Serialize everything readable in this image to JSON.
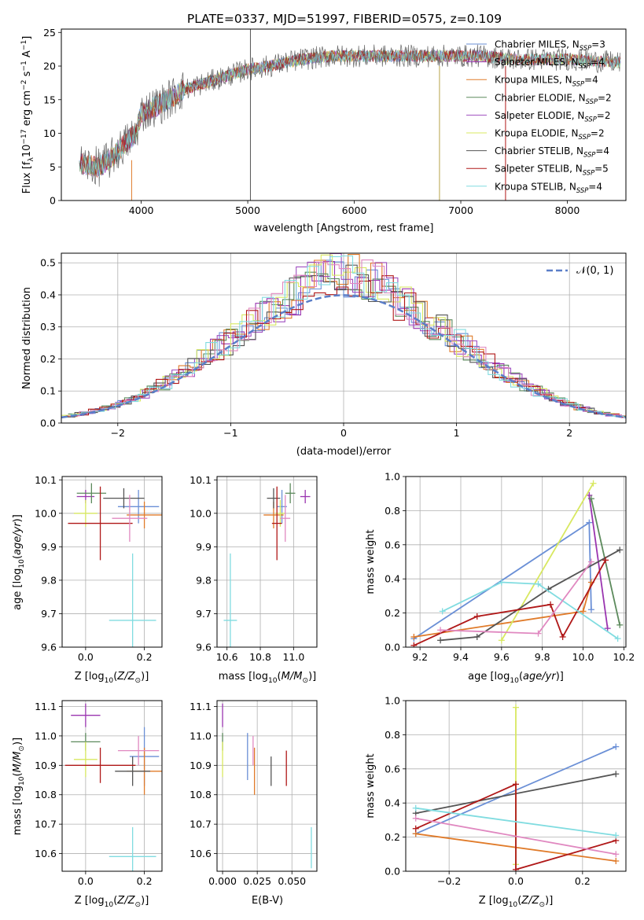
{
  "figure_title": "PLATE=0337, MJD=51997, FIBERID=0575, z=0.109",
  "colors": {
    "Chabrier MILES": "#6a8fd6",
    "Salpeter MILES": "#9a35b0",
    "Kroupa MILES": "#e07b2a",
    "Chabrier ELODIE": "#5c8a5c",
    "Salpeter ELODIE": "#a050c0",
    "Kroupa ELODIE": "#d8e860",
    "Chabrier STELIB": "#555555",
    "Salpeter STELIB": "#b01818",
    "Kroupa STELIB": "#80dce0",
    "pink": "#e088c0",
    "normal": "#5a7ec8"
  },
  "chart_data": [
    {
      "id": "spectrum",
      "type": "line",
      "title": "PLATE=0337, MJD=51997, FIBERID=0575, z=0.109",
      "xlabel": "wavelength [Angstrom, rest frame]",
      "ylabel": "Flux [f_λ 10^-17 erg cm^-2 s^-1 A^-1]",
      "xlim": [
        3250,
        8550
      ],
      "ylim": [
        0,
        25.5
      ],
      "xticks": [
        4000,
        5000,
        6000,
        7000,
        8000
      ],
      "yticks": [
        0,
        5,
        10,
        15,
        20,
        25
      ],
      "grid": false,
      "legend_position": "right",
      "legend": [
        {
          "label": "Chabrier MILES",
          "nssp": "3"
        },
        {
          "label": "Salpeter MILES",
          "nssp": "4"
        },
        {
          "label": "Kroupa MILES",
          "nssp": "4"
        },
        {
          "label": "Chabrier ELODIE",
          "nssp": "2"
        },
        {
          "label": "Salpeter ELODIE",
          "nssp": "2"
        },
        {
          "label": "Kroupa ELODIE",
          "nssp": "2"
        },
        {
          "label": "Chabrier STELIB",
          "nssp": "4"
        },
        {
          "label": "Salpeter STELIB",
          "nssp": "5"
        },
        {
          "label": "Kroupa STELIB",
          "nssp": "4"
        }
      ],
      "continuum": [
        [
          3420,
          5.5
        ],
        [
          3600,
          5.0
        ],
        [
          3700,
          6.0
        ],
        [
          3850,
          8.5
        ],
        [
          3950,
          10.0
        ],
        [
          4000,
          13.0
        ],
        [
          4200,
          14.5
        ],
        [
          4400,
          16.5
        ],
        [
          4600,
          17.5
        ],
        [
          4800,
          18.5
        ],
        [
          5000,
          19.5
        ],
        [
          5200,
          20.0
        ],
        [
          5500,
          21.0
        ],
        [
          5800,
          21.5
        ],
        [
          6000,
          21.5
        ],
        [
          6300,
          21.5
        ],
        [
          6600,
          21.5
        ],
        [
          6900,
          21.5
        ],
        [
          7200,
          21.5
        ],
        [
          7500,
          21.0
        ],
        [
          8000,
          21.0
        ],
        [
          8500,
          20.5
        ]
      ]
    },
    {
      "id": "residuals",
      "type": "histogram",
      "xlabel": "(data-model)/error",
      "ylabel": "Normed distribution",
      "xlim": [
        -2.5,
        2.5
      ],
      "ylim": [
        0,
        0.53
      ],
      "xticks": [
        -2,
        -1,
        0,
        1,
        2
      ],
      "yticks": [
        0.0,
        0.1,
        0.2,
        0.3,
        0.4,
        0.5
      ],
      "grid": true,
      "legend": [
        {
          "label": "𝒩(0, 1)",
          "style": "dashed"
        }
      ],
      "legend_position": "upper right"
    },
    {
      "id": "age_vs_Z",
      "type": "errorbar",
      "xlabel": "Z [log10(Z/Z☉)]",
      "ylabel": "age [log10(age/yr)]",
      "xlim": [
        -0.08,
        0.26
      ],
      "ylim": [
        9.6,
        10.11
      ],
      "xticks": [
        0.0,
        0.2
      ],
      "yticks": [
        9.6,
        9.7,
        9.8,
        9.9,
        10.0,
        10.1
      ],
      "points": [
        {
          "series": "Chabrier MILES",
          "x": 0.18,
          "y": 10.02,
          "xerr": 0.07,
          "yerr": 0.05
        },
        {
          "series": "Salpeter MILES",
          "x": 0.0,
          "y": 10.05,
          "xerr": 0.03,
          "yerr": 0.02
        },
        {
          "series": "Kroupa MILES",
          "x": 0.2,
          "y": 9.995,
          "xerr": 0.06,
          "yerr": 0.04
        },
        {
          "series": "Chabrier ELODIE",
          "x": 0.02,
          "y": 10.06,
          "xerr": 0.05,
          "yerr": 0.03
        },
        {
          "series": "Kroupa ELODIE",
          "x": 0.0,
          "y": 10.0,
          "xerr": 0.04,
          "yerr": 0.04
        },
        {
          "series": "Chabrier STELIB",
          "x": 0.13,
          "y": 10.045,
          "xerr": 0.07,
          "yerr": 0.03
        },
        {
          "series": "Salpeter STELIB",
          "x": 0.05,
          "y": 9.97,
          "xerr": 0.11,
          "yerr": 0.11
        },
        {
          "series": "Kroupa STELIB",
          "x": 0.16,
          "y": 9.68,
          "xerr": 0.08,
          "yerr": 0.2
        },
        {
          "series": "pink",
          "x": 0.15,
          "y": 9.985,
          "xerr": 0.06,
          "yerr": 0.07
        }
      ]
    },
    {
      "id": "age_vs_mass",
      "type": "errorbar",
      "xlabel": "mass [log10(M/M☉)]",
      "xlim": [
        10.54,
        11.14
      ],
      "ylim": [
        9.6,
        10.11
      ],
      "xticks": [
        10.6,
        10.8,
        11.0
      ],
      "yticks": [
        9.6,
        9.7,
        9.8,
        9.9,
        10.0,
        10.1
      ],
      "points": [
        {
          "series": "Chabrier MILES",
          "x": 10.93,
          "y": 10.02,
          "xerr": 0.03,
          "yerr": 0.05
        },
        {
          "series": "Salpeter MILES",
          "x": 11.07,
          "y": 10.05,
          "xerr": 0.03,
          "yerr": 0.02
        },
        {
          "series": "Kroupa MILES",
          "x": 10.88,
          "y": 9.995,
          "xerr": 0.06,
          "yerr": 0.04
        },
        {
          "series": "Chabrier ELODIE",
          "x": 10.98,
          "y": 10.06,
          "xerr": 0.03,
          "yerr": 0.03
        },
        {
          "series": "Kroupa ELODIE",
          "x": 10.92,
          "y": 10.0,
          "xerr": 0.03,
          "yerr": 0.04
        },
        {
          "series": "Chabrier STELIB",
          "x": 10.88,
          "y": 10.045,
          "xerr": 0.04,
          "yerr": 0.03
        },
        {
          "series": "Salpeter STELIB",
          "x": 10.9,
          "y": 9.97,
          "xerr": 0.03,
          "yerr": 0.11
        },
        {
          "series": "Kroupa STELIB",
          "x": 10.62,
          "y": 9.68,
          "xerr": 0.04,
          "yerr": 0.2
        },
        {
          "series": "pink",
          "x": 10.95,
          "y": 9.985,
          "xerr": 0.03,
          "yerr": 0.07
        }
      ]
    },
    {
      "id": "weight_vs_age",
      "type": "line",
      "xlabel": "age [log10(age/yr)]",
      "ylabel": "mass weight",
      "xlim": [
        9.13,
        10.21
      ],
      "ylim": [
        0,
        1.0
      ],
      "xticks": [
        9.2,
        9.4,
        9.6,
        9.8,
        10.0,
        10.2
      ],
      "yticks": [
        0.0,
        0.2,
        0.4,
        0.6,
        0.8,
        1.0
      ],
      "grid": true,
      "series": [
        {
          "name": "Chabrier MILES",
          "x": [
            9.17,
            10.03,
            10.04
          ],
          "y": [
            0.05,
            0.73,
            0.22
          ]
        },
        {
          "name": "Salpeter MILES",
          "x": [
            10.03,
            10.12
          ],
          "y": [
            0.89,
            0.11
          ]
        },
        {
          "name": "Kroupa MILES",
          "x": [
            9.17,
            10.0,
            10.04
          ],
          "y": [
            0.06,
            0.21,
            0.38
          ]
        },
        {
          "name": "Chabrier ELODIE",
          "x": [
            10.04,
            10.18
          ],
          "y": [
            0.87,
            0.13
          ]
        },
        {
          "name": "Kroupa ELODIE",
          "x": [
            9.6,
            10.05
          ],
          "y": [
            0.04,
            0.96
          ]
        },
        {
          "name": "Chabrier STELIB",
          "x": [
            9.3,
            9.48,
            9.83,
            10.18
          ],
          "y": [
            0.04,
            0.06,
            0.34,
            0.57
          ]
        },
        {
          "name": "Salpeter STELIB",
          "x": [
            9.17,
            9.48,
            9.84,
            9.9,
            10.11
          ],
          "y": [
            0.01,
            0.18,
            0.25,
            0.06,
            0.51
          ]
        },
        {
          "name": "Kroupa STELIB",
          "x": [
            9.31,
            9.6,
            9.78,
            10.17
          ],
          "y": [
            0.21,
            0.38,
            0.37,
            0.05
          ]
        },
        {
          "name": "pink",
          "x": [
            9.3,
            9.78,
            10.04
          ],
          "y": [
            0.1,
            0.08,
            0.5
          ]
        }
      ]
    },
    {
      "id": "mass_vs_Z",
      "type": "errorbar",
      "xlabel": "Z [log10(Z/Z☉)]",
      "ylabel": "mass [log10(M/M☉)]",
      "xlim": [
        -0.08,
        0.26
      ],
      "ylim": [
        10.54,
        11.12
      ],
      "xticks": [
        0.0,
        0.2
      ],
      "yticks": [
        10.6,
        10.7,
        10.8,
        10.9,
        11.0,
        11.1
      ],
      "points": [
        {
          "series": "Chabrier MILES",
          "x": 0.2,
          "y": 10.93,
          "xerr": 0.05,
          "yerr": 0.1
        },
        {
          "series": "Salpeter MILES",
          "x": 0.0,
          "y": 11.07,
          "xerr": 0.05,
          "yerr": 0.04
        },
        {
          "series": "Kroupa MILES",
          "x": 0.2,
          "y": 10.88,
          "xerr": 0.06,
          "yerr": 0.08
        },
        {
          "series": "Chabrier ELODIE",
          "x": 0.0,
          "y": 10.98,
          "xerr": 0.05,
          "yerr": 0.03
        },
        {
          "series": "Kroupa ELODIE",
          "x": 0.0,
          "y": 10.92,
          "xerr": 0.04,
          "yerr": 0.06
        },
        {
          "series": "Chabrier STELIB",
          "x": 0.16,
          "y": 10.88,
          "xerr": 0.06,
          "yerr": 0.05
        },
        {
          "series": "Salpeter STELIB",
          "x": 0.05,
          "y": 10.9,
          "xerr": 0.12,
          "yerr": 0.06
        },
        {
          "series": "Kroupa STELIB",
          "x": 0.16,
          "y": 10.59,
          "xerr": 0.08,
          "yerr": 0.1
        },
        {
          "series": "pink",
          "x": 0.18,
          "y": 10.95,
          "xerr": 0.07,
          "yerr": 0.05
        }
      ]
    },
    {
      "id": "mass_vs_EBV",
      "type": "errorbar",
      "xlabel": "E(B-V)",
      "xlim": [
        -0.004,
        0.068
      ],
      "ylim": [
        10.54,
        11.12
      ],
      "xticks": [
        0.0,
        0.025,
        0.05
      ],
      "yticks": [
        10.6,
        10.7,
        10.8,
        10.9,
        11.0,
        11.1
      ],
      "points": [
        {
          "series": "Chabrier MILES",
          "x": 0.018,
          "y": 10.93,
          "xerr": 0,
          "yerr": 0.08
        },
        {
          "series": "Salpeter MILES",
          "x": 0.0,
          "y": 11.07,
          "xerr": 0,
          "yerr": 0.04
        },
        {
          "series": "Kroupa MILES",
          "x": 0.023,
          "y": 10.88,
          "xerr": 0,
          "yerr": 0.08
        },
        {
          "series": "Chabrier ELODIE",
          "x": 0.0,
          "y": 10.98,
          "xerr": 0,
          "yerr": 0.03
        },
        {
          "series": "Kroupa ELODIE",
          "x": 0.0,
          "y": 10.92,
          "xerr": 0,
          "yerr": 0.06
        },
        {
          "series": "Chabrier STELIB",
          "x": 0.035,
          "y": 10.88,
          "xerr": 0,
          "yerr": 0.05
        },
        {
          "series": "Salpeter STELIB",
          "x": 0.046,
          "y": 10.89,
          "xerr": 0,
          "yerr": 0.06
        },
        {
          "series": "Kroupa STELIB",
          "x": 0.064,
          "y": 10.62,
          "xerr": 0,
          "yerr": 0.07
        },
        {
          "series": "pink",
          "x": 0.022,
          "y": 10.95,
          "xerr": 0,
          "yerr": 0.05
        }
      ]
    },
    {
      "id": "weight_vs_Z",
      "type": "line",
      "xlabel": "Z [log10(Z/Z☉)]",
      "ylabel": "mass weight",
      "xlim": [
        -0.33,
        0.33
      ],
      "ylim": [
        0,
        1.0
      ],
      "xticks": [
        -0.2,
        0.0,
        0.2
      ],
      "yticks": [
        0.0,
        0.2,
        0.4,
        0.6,
        0.8,
        1.0
      ],
      "grid": true,
      "series": [
        {
          "name": "Chabrier MILES",
          "x": [
            -0.3,
            0.3
          ],
          "y": [
            0.22,
            0.73
          ]
        },
        {
          "name": "Kroupa MILES",
          "x": [
            -0.3,
            0.3
          ],
          "y": [
            0.22,
            0.06
          ]
        },
        {
          "name": "Kroupa ELODIE",
          "x": [
            0.0,
            0.0
          ],
          "y": [
            0.04,
            0.96
          ]
        },
        {
          "name": "Chabrier STELIB",
          "x": [
            -0.3,
            0.3
          ],
          "y": [
            0.34,
            0.57
          ]
        },
        {
          "name": "Salpeter STELIB",
          "x": [
            -0.3,
            0.0,
            0.0,
            0.3
          ],
          "y": [
            0.25,
            0.51,
            0.01,
            0.18
          ]
        },
        {
          "name": "Kroupa STELIB",
          "x": [
            -0.3,
            0.3
          ],
          "y": [
            0.37,
            0.21
          ]
        },
        {
          "name": "pink",
          "x": [
            -0.3,
            0.3
          ],
          "y": [
            0.31,
            0.1
          ]
        }
      ]
    }
  ]
}
